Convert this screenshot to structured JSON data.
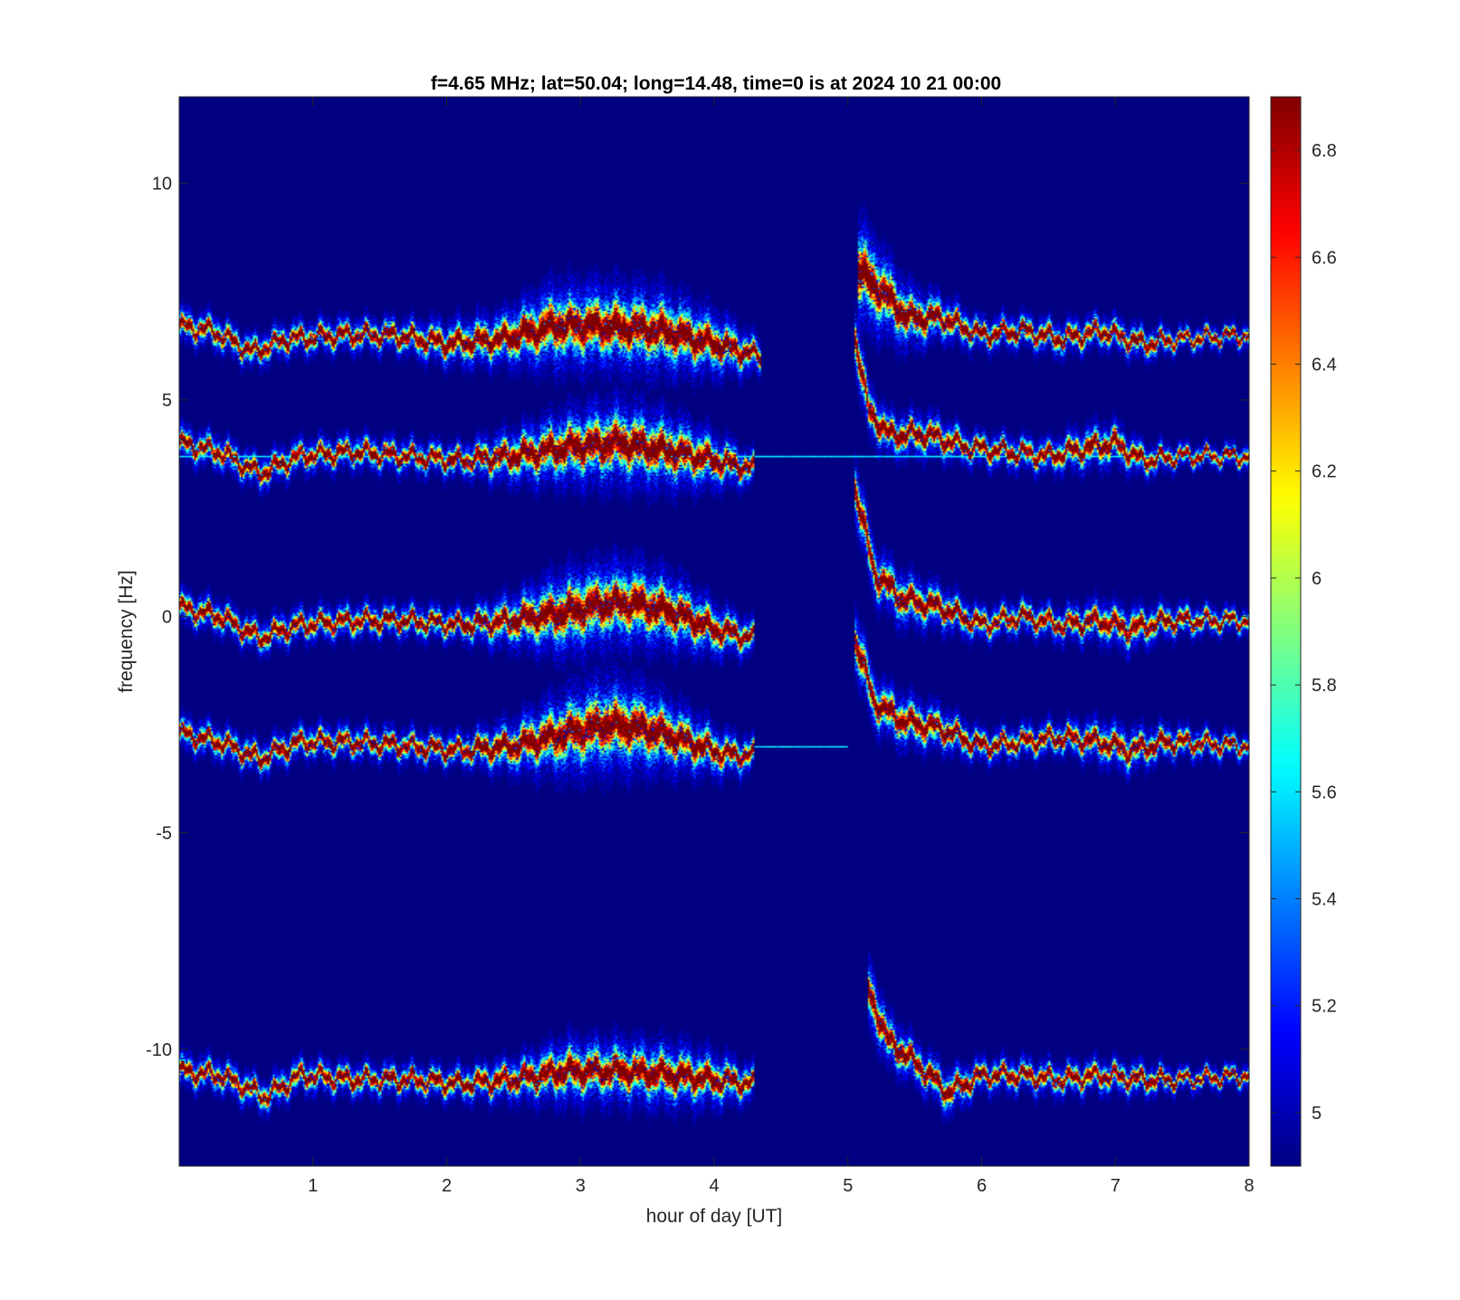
{
  "chart_data": {
    "type": "heatmap",
    "title": "f=4.65 MHz;  lat=50.04; long=14.48, time=0 is at 2024 10 21 00:00",
    "xlabel": "hour of day [UT]",
    "ylabel": "frequency [Hz]",
    "xlim": [
      0,
      8
    ],
    "ylim": [
      -12.7,
      12.0
    ],
    "x_ticks": [
      1,
      2,
      3,
      4,
      5,
      6,
      7,
      8
    ],
    "y_ticks": [
      -10,
      -5,
      0,
      5,
      10
    ],
    "colorbar": {
      "colormap": "jet",
      "range": [
        4.9,
        6.9
      ],
      "ticks": [
        5,
        5.2,
        5.4,
        5.6,
        5.8,
        6,
        6.2,
        6.4,
        6.6,
        6.8
      ]
    },
    "background_value": 4.9,
    "doppler_traces": [
      {
        "segments": [
          {
            "x": [
              0.0,
              0.25,
              0.55,
              0.8,
              1.2,
              1.6,
              2.0,
              2.4,
              2.8,
              3.2,
              3.6,
              4.0,
              4.35
            ],
            "y": [
              6.7,
              6.6,
              6.1,
              6.4,
              6.5,
              6.5,
              6.3,
              6.4,
              6.7,
              6.7,
              6.6,
              6.3,
              6.0
            ],
            "spread": [
              0.3,
              0.3,
              0.3,
              0.3,
              0.3,
              0.3,
              0.4,
              0.5,
              0.8,
              0.8,
              0.8,
              0.6,
              0.3
            ]
          },
          {
            "x": [
              5.08,
              5.25,
              5.45,
              5.7,
              6.0,
              6.3,
              6.6,
              6.9,
              7.2,
              7.5,
              8.0
            ],
            "y": [
              8.0,
              7.5,
              6.9,
              6.9,
              6.5,
              6.6,
              6.4,
              6.6,
              6.3,
              6.4,
              6.5
            ],
            "spread": [
              1.0,
              0.8,
              0.6,
              0.4,
              0.3,
              0.3,
              0.3,
              0.3,
              0.3,
              0.2,
              0.2
            ]
          }
        ]
      },
      {
        "segments": [
          {
            "x": [
              0.0,
              0.3,
              0.6,
              0.9,
              1.3,
              1.7,
              2.1,
              2.5,
              2.9,
              3.3,
              3.7,
              4.0,
              4.3
            ],
            "y": [
              4.0,
              3.8,
              3.3,
              3.7,
              3.8,
              3.7,
              3.6,
              3.7,
              3.9,
              4.0,
              3.8,
              3.6,
              3.4
            ],
            "spread": [
              0.3,
              0.3,
              0.3,
              0.3,
              0.3,
              0.3,
              0.3,
              0.5,
              0.7,
              0.8,
              0.7,
              0.5,
              0.3
            ]
          },
          {
            "x": [
              5.05,
              5.15,
              5.3,
              5.6,
              5.9,
              6.2,
              6.5,
              6.8,
              7.0,
              7.2,
              7.5,
              8.0
            ],
            "y": [
              6.5,
              4.8,
              4.2,
              4.2,
              3.9,
              3.8,
              3.7,
              3.9,
              4.0,
              3.6,
              3.7,
              3.7
            ],
            "spread": [
              0.6,
              0.5,
              0.4,
              0.4,
              0.3,
              0.3,
              0.3,
              0.4,
              0.4,
              0.3,
              0.2,
              0.2
            ]
          }
        ]
      },
      {
        "segments": [
          {
            "x": [
              0.0,
              0.3,
              0.6,
              0.9,
              1.3,
              1.7,
              2.1,
              2.5,
              2.9,
              3.2,
              3.4,
              3.7,
              4.0,
              4.3
            ],
            "y": [
              0.2,
              0.0,
              -0.5,
              -0.2,
              -0.1,
              -0.1,
              -0.2,
              -0.1,
              0.1,
              0.3,
              0.3,
              0.1,
              -0.3,
              -0.5
            ],
            "spread": [
              0.3,
              0.3,
              0.3,
              0.3,
              0.3,
              0.3,
              0.3,
              0.5,
              0.8,
              0.8,
              0.8,
              0.7,
              0.5,
              0.3
            ]
          },
          {
            "x": [
              5.05,
              5.2,
              5.4,
              5.7,
              6.0,
              6.3,
              6.6,
              6.9,
              7.1,
              7.4,
              8.0
            ],
            "y": [
              3.0,
              1.0,
              0.4,
              0.2,
              -0.2,
              0.0,
              -0.2,
              -0.1,
              -0.3,
              -0.1,
              -0.1
            ],
            "spread": [
              0.6,
              0.5,
              0.5,
              0.4,
              0.3,
              0.3,
              0.3,
              0.4,
              0.4,
              0.3,
              0.2
            ]
          }
        ]
      },
      {
        "segments": [
          {
            "x": [
              0.0,
              0.3,
              0.6,
              0.9,
              1.3,
              1.7,
              2.1,
              2.5,
              2.9,
              3.2,
              3.5,
              3.8,
              4.1,
              4.3
            ],
            "y": [
              -2.7,
              -2.9,
              -3.3,
              -2.9,
              -2.9,
              -3.0,
              -3.1,
              -3.0,
              -2.7,
              -2.5,
              -2.6,
              -2.9,
              -3.2,
              -3.2
            ],
            "spread": [
              0.3,
              0.3,
              0.3,
              0.3,
              0.3,
              0.3,
              0.3,
              0.5,
              0.8,
              0.9,
              0.8,
              0.6,
              0.4,
              0.3
            ]
          },
          {
            "x": [
              5.05,
              5.2,
              5.4,
              5.7,
              6.0,
              6.3,
              6.6,
              6.9,
              7.1,
              7.4,
              8.0
            ],
            "y": [
              -0.5,
              -2.0,
              -2.4,
              -2.6,
              -3.0,
              -2.9,
              -2.8,
              -2.9,
              -3.1,
              -2.9,
              -3.0
            ],
            "spread": [
              0.6,
              0.5,
              0.5,
              0.4,
              0.3,
              0.3,
              0.3,
              0.4,
              0.4,
              0.3,
              0.2
            ]
          }
        ]
      },
      {
        "segments": [
          {
            "x": [
              0.0,
              0.3,
              0.65,
              0.9,
              1.3,
              1.7,
              2.1,
              2.5,
              2.9,
              3.3,
              3.7,
              4.0,
              4.3
            ],
            "y": [
              -10.5,
              -10.6,
              -11.1,
              -10.6,
              -10.7,
              -10.7,
              -10.8,
              -10.7,
              -10.5,
              -10.5,
              -10.6,
              -10.7,
              -10.8
            ],
            "spread": [
              0.3,
              0.3,
              0.3,
              0.3,
              0.3,
              0.3,
              0.3,
              0.4,
              0.6,
              0.6,
              0.6,
              0.5,
              0.3
            ]
          },
          {
            "x": [
              5.15,
              5.3,
              5.5,
              5.75,
              6.0,
              6.3,
              6.6,
              6.9,
              7.2,
              7.5,
              8.0
            ],
            "y": [
              -8.6,
              -9.8,
              -10.3,
              -11.0,
              -10.6,
              -10.6,
              -10.7,
              -10.6,
              -10.7,
              -10.7,
              -10.6
            ],
            "spread": [
              0.6,
              0.5,
              0.4,
              0.4,
              0.3,
              0.3,
              0.3,
              0.3,
              0.3,
              0.2,
              0.2
            ]
          }
        ]
      }
    ],
    "constant_lines": [
      {
        "y": 3.7,
        "x_range": [
          0,
          8
        ]
      },
      {
        "y": -3.0,
        "x_range": [
          4.3,
          5.0
        ]
      }
    ]
  }
}
